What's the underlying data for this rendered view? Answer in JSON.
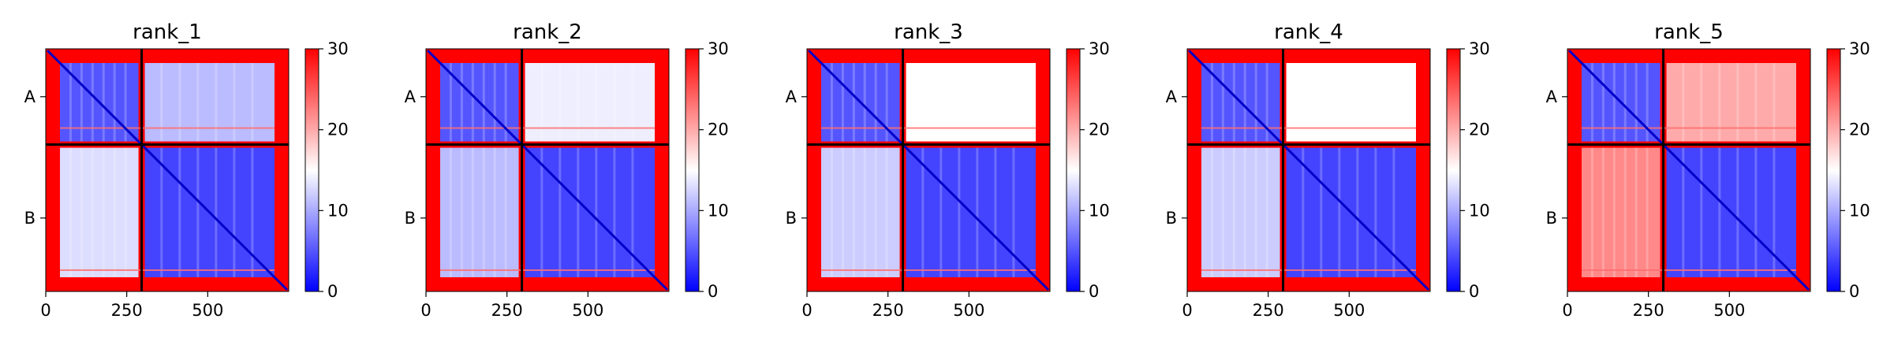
{
  "figure": {
    "colormap": [
      "#0000ff",
      "#ffffff",
      "#ff0000"
    ]
  },
  "chart_data": [
    {
      "type": "heatmap",
      "title": "rank_1",
      "x_ticks": [
        0,
        250,
        500
      ],
      "x_range": [
        0,
        750
      ],
      "y_ticks": [
        "A",
        "B"
      ],
      "chain_boundary": 296,
      "colorbar": {
        "range": [
          0,
          30
        ],
        "ticks": [
          0,
          10,
          20,
          30
        ]
      },
      "mean_values": {
        "A-A": 5,
        "A-B": 11,
        "B-A": 13,
        "B-B": 4
      }
    },
    {
      "type": "heatmap",
      "title": "rank_2",
      "x_ticks": [
        0,
        250,
        500
      ],
      "x_range": [
        0,
        750
      ],
      "y_ticks": [
        "A",
        "B"
      ],
      "chain_boundary": 296,
      "colorbar": {
        "range": [
          0,
          30
        ],
        "ticks": [
          0,
          10,
          20,
          30
        ]
      },
      "mean_values": {
        "A-A": 5,
        "A-B": 14,
        "B-A": 11,
        "B-B": 4
      }
    },
    {
      "type": "heatmap",
      "title": "rank_3",
      "x_ticks": [
        0,
        250,
        500
      ],
      "x_range": [
        0,
        750
      ],
      "y_ticks": [
        "A",
        "B"
      ],
      "chain_boundary": 296,
      "colorbar": {
        "range": [
          0,
          30
        ],
        "ticks": [
          0,
          10,
          20,
          30
        ]
      },
      "mean_values": {
        "A-A": 5,
        "A-B": 15,
        "B-A": 12,
        "B-B": 4
      }
    },
    {
      "type": "heatmap",
      "title": "rank_4",
      "x_ticks": [
        0,
        250,
        500
      ],
      "x_range": [
        0,
        750
      ],
      "y_ticks": [
        "A",
        "B"
      ],
      "chain_boundary": 296,
      "colorbar": {
        "range": [
          0,
          30
        ],
        "ticks": [
          0,
          10,
          20,
          30
        ]
      },
      "mean_values": {
        "A-A": 5,
        "A-B": 15,
        "B-A": 12,
        "B-B": 4
      }
    },
    {
      "type": "heatmap",
      "title": "rank_5",
      "x_ticks": [
        0,
        250,
        500
      ],
      "x_range": [
        0,
        750
      ],
      "y_ticks": [
        "A",
        "B"
      ],
      "chain_boundary": 296,
      "colorbar": {
        "range": [
          0,
          30
        ],
        "ticks": [
          0,
          10,
          20,
          30
        ]
      },
      "mean_values": {
        "A-A": 5,
        "A-B": 20,
        "B-A": 22,
        "B-B": 4
      }
    }
  ]
}
